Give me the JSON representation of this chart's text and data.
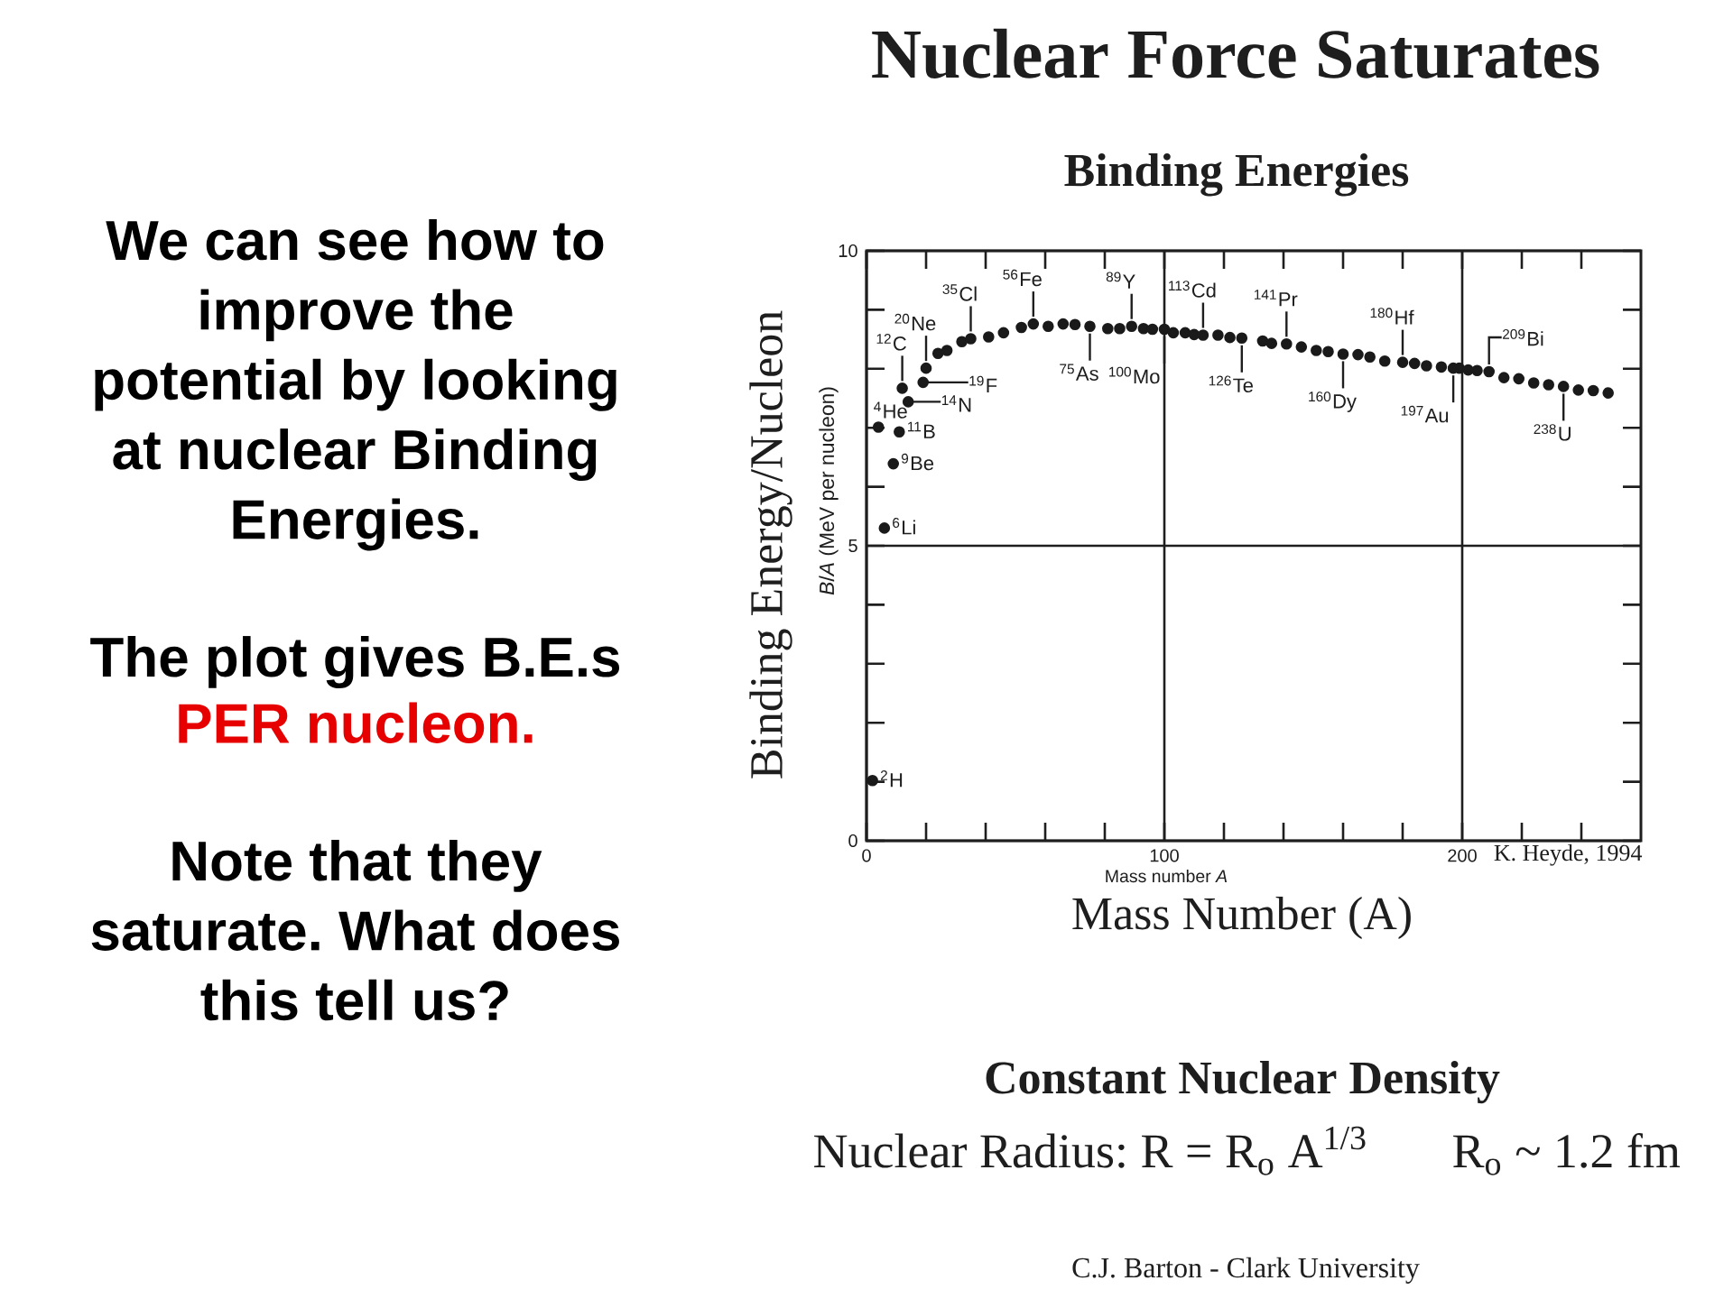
{
  "chart_data": {
    "type": "scatter",
    "title": "Nuclear Force Saturates",
    "subtitle": "Binding Energies",
    "xlabel": "Mass number *A*",
    "ylabel": "*B*/*A* (MeV per nucleon)",
    "x": [
      2,
      4,
      6,
      9,
      11,
      12,
      14,
      19,
      20,
      24,
      27,
      32,
      35,
      41,
      46,
      52,
      56,
      61,
      66,
      70,
      75,
      81,
      85,
      89,
      93,
      96,
      100,
      103,
      107,
      110,
      113,
      118,
      122,
      126,
      133,
      136,
      141,
      146,
      151,
      155,
      160,
      165,
      169,
      174,
      180,
      184,
      188,
      193,
      197,
      199,
      202,
      205,
      209,
      214,
      219,
      224,
      229,
      234,
      239,
      244,
      249
    ],
    "series": [
      {
        "color": "#1a1a1a",
        "values": [
          1.02,
          7.01,
          5.3,
          6.39,
          6.93,
          7.67,
          7.44,
          7.77,
          8.01,
          8.26,
          8.31,
          8.46,
          8.51,
          8.54,
          8.61,
          8.7,
          8.76,
          8.72,
          8.76,
          8.75,
          8.72,
          8.68,
          8.68,
          8.72,
          8.68,
          8.67,
          8.67,
          8.61,
          8.61,
          8.58,
          8.57,
          8.57,
          8.53,
          8.52,
          8.47,
          8.43,
          8.42,
          8.37,
          8.31,
          8.29,
          8.25,
          8.24,
          8.2,
          8.13,
          8.11,
          8.09,
          8.05,
          8.03,
          8.01,
          8.01,
          7.98,
          7.97,
          7.95,
          7.85,
          7.83,
          7.76,
          7.73,
          7.7,
          7.64,
          7.63,
          7.59
        ]
      }
    ],
    "marker": "circle",
    "grid": true,
    "xlim": [
      0,
      260
    ],
    "xticks": [
      0,
      {
        "value": 20,
        "label": null
      },
      {
        "value": 40,
        "label": null
      },
      {
        "value": 60,
        "label": null
      },
      {
        "value": 80,
        "label": null
      },
      100,
      {
        "value": 120,
        "label": null
      },
      {
        "value": 140,
        "label": null
      },
      {
        "value": 160,
        "label": null
      },
      {
        "value": 180,
        "label": null
      },
      200,
      {
        "value": 220,
        "label": null
      },
      {
        "value": 240,
        "label": null
      }
    ],
    "ylim": [
      0,
      10
    ],
    "yticks": [
      0,
      {
        "value": 1,
        "label": null
      },
      {
        "value": 2,
        "label": null
      },
      {
        "value": 3,
        "label": null
      },
      {
        "value": 4,
        "label": null
      },
      5,
      {
        "value": 6,
        "label": null
      },
      {
        "value": 7,
        "label": null
      },
      {
        "value": 8,
        "label": null
      },
      {
        "value": 9,
        "label": null
      },
      10
    ],
    "annotations": [
      {
        "text": "$^{2}$H",
        "x": 2,
        "y": 1.02
      },
      {
        "text": "$^{4}$He",
        "x": 4,
        "y": 7.01
      },
      {
        "text": "$^{6}$Li",
        "x": 6,
        "y": 5.3
      },
      {
        "text": "$^{9}$Be",
        "x": 9,
        "y": 6.39
      },
      {
        "text": "$^{11}$B",
        "x": 11,
        "y": 6.93
      },
      {
        "text": "$^{12}$C",
        "x": 12,
        "y": 7.67
      },
      {
        "text": "$^{14}$N",
        "x": 14,
        "y": 7.44
      },
      {
        "text": "$^{19}$F",
        "x": 19,
        "y": 7.77
      },
      {
        "text": "$^{20}$Ne",
        "x": 20,
        "y": 8.01
      },
      {
        "text": "$^{35}$Cl",
        "x": 35,
        "y": 8.51
      },
      {
        "text": "$^{56}$Fe",
        "x": 56,
        "y": 8.76
      },
      {
        "text": "$^{75}$As",
        "x": 75,
        "y": 8.72
      },
      {
        "text": "$^{89}$Y",
        "x": 89,
        "y": 8.72
      },
      {
        "text": "$^{100}$Mo",
        "x": 100,
        "y": 8.67
      },
      {
        "text": "$^{113}$Cd",
        "x": 113,
        "y": 8.57
      },
      {
        "text": "$^{126}$Te",
        "x": 126,
        "y": 8.52
      },
      {
        "text": "$^{141}$Pr",
        "x": 141,
        "y": 8.42
      },
      {
        "text": "$^{160}$Dy",
        "x": 160,
        "y": 8.25
      },
      {
        "text": "$^{180}$Hf",
        "x": 180,
        "y": 8.11
      },
      {
        "text": "$^{197}$Au",
        "x": 197,
        "y": 8.01
      },
      {
        "text": "$^{209}$Bi",
        "x": 209,
        "y": 7.95
      },
      {
        "text": "$^{238}$U",
        "x": 234,
        "y": 7.7
      },
      "Binding Energy/Nucleon",
      "Mass Number (A)",
      "K. Heyde, 1994",
      "Constant Nuclear Density",
      "Nuclear Radius: R = R$_{o}$ A$^{1/3}$",
      "R$_{o}$ ~ 1.2 fm",
      "C.J. Barton - Clark University",
      "We can see how to improve the potential by looking at nuclear Binding Energies.",
      "The plot gives B.E.s",
      "PER nucleon.",
      "Note that they saturate. What does this tell us?"
    ]
  }
}
